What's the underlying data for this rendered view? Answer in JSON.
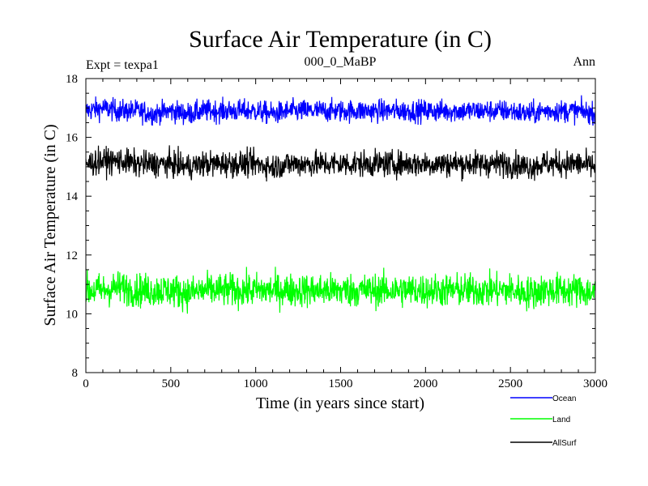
{
  "chart_data": {
    "type": "line",
    "title": "Surface Air Temperature (in C)",
    "subtitle_left": "Expt = texpa1",
    "subtitle_center": "000_0_MaBP",
    "subtitle_right": "Ann",
    "xlabel": "Time (in years since start)",
    "ylabel": "Surface Air Temperature (in C)",
    "xlim": [
      0,
      3000
    ],
    "ylim": [
      8,
      18
    ],
    "xticks": [
      0,
      500,
      1000,
      1500,
      2000,
      2500,
      3000
    ],
    "yticks": [
      8,
      10,
      12,
      14,
      16,
      18
    ],
    "grid": false,
    "legend_position": "bottom-right, below plot",
    "series": [
      {
        "name": "Ocean",
        "color": "#0000ff",
        "mean": 16.9,
        "range": [
          16.4,
          17.6
        ],
        "x": [
          0,
          100,
          200,
          300,
          400,
          500,
          600,
          700,
          800,
          900,
          1000,
          1100,
          1200,
          1300,
          1400,
          1500,
          1600,
          1700,
          1800,
          1900,
          2000,
          2100,
          2200,
          2300,
          2400,
          2500,
          2600,
          2700,
          2800,
          2900,
          3000
        ],
        "values": [
          16.9,
          17.0,
          16.9,
          16.9,
          16.8,
          16.9,
          16.8,
          16.9,
          16.9,
          16.9,
          16.9,
          16.8,
          16.9,
          16.9,
          16.9,
          16.9,
          16.9,
          16.9,
          16.9,
          16.9,
          16.9,
          16.9,
          16.9,
          16.9,
          16.9,
          16.9,
          16.8,
          16.9,
          16.9,
          16.9,
          16.8
        ]
      },
      {
        "name": "Land",
        "color": "#00ff00",
        "mean": 10.8,
        "range": [
          9.9,
          11.7
        ],
        "x": [
          0,
          100,
          200,
          300,
          400,
          500,
          600,
          700,
          800,
          900,
          1000,
          1100,
          1200,
          1300,
          1400,
          1500,
          1600,
          1700,
          1800,
          1900,
          2000,
          2100,
          2200,
          2300,
          2400,
          2500,
          2600,
          2700,
          2800,
          2900,
          3000
        ],
        "values": [
          10.8,
          10.8,
          10.9,
          10.8,
          10.8,
          10.8,
          10.7,
          10.8,
          10.8,
          10.8,
          10.8,
          10.8,
          10.8,
          10.8,
          10.8,
          10.8,
          10.8,
          10.8,
          10.8,
          10.8,
          10.8,
          10.8,
          10.8,
          10.8,
          10.8,
          10.8,
          10.7,
          10.8,
          10.8,
          10.8,
          10.7
        ]
      },
      {
        "name": "AllSurf",
        "color": "#000000",
        "mean": 15.1,
        "range": [
          14.5,
          15.9
        ],
        "x": [
          0,
          100,
          200,
          300,
          400,
          500,
          600,
          700,
          800,
          900,
          1000,
          1100,
          1200,
          1300,
          1400,
          1500,
          1600,
          1700,
          1800,
          1900,
          2000,
          2100,
          2200,
          2300,
          2400,
          2500,
          2600,
          2700,
          2800,
          2900,
          3000
        ],
        "values": [
          15.1,
          15.2,
          15.2,
          15.1,
          15.1,
          15.1,
          15.0,
          15.1,
          15.1,
          15.1,
          15.1,
          15.0,
          15.1,
          15.1,
          15.1,
          15.1,
          15.1,
          15.1,
          15.1,
          15.1,
          15.1,
          15.1,
          15.1,
          15.1,
          15.1,
          15.1,
          15.0,
          15.1,
          15.1,
          15.1,
          15.0
        ]
      }
    ]
  }
}
